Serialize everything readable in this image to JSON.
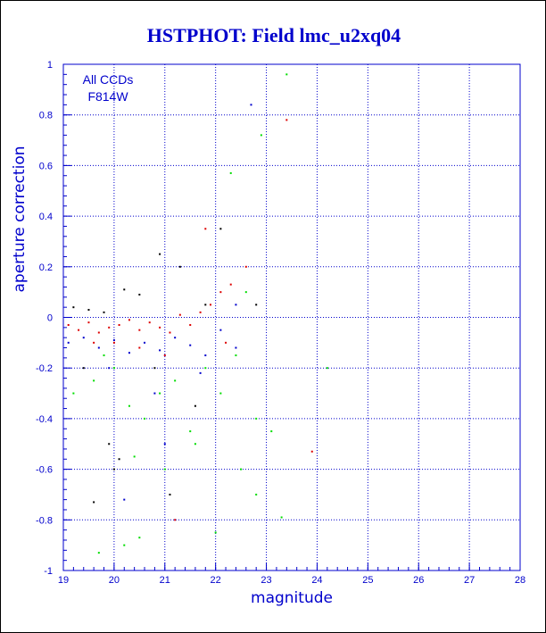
{
  "chart_data": {
    "type": "scatter",
    "title": "HSTPHOT: Field lmc_u2xq04",
    "xlabel": "magnitude",
    "ylabel": "aperture correction",
    "xlim": [
      19,
      28
    ],
    "ylim": [
      -1,
      1
    ],
    "xticks": [
      "19",
      "20",
      "21",
      "22",
      "23",
      "24",
      "25",
      "26",
      "27",
      "28"
    ],
    "yticks": [
      "-1",
      "-0.8",
      "-0.6",
      "-0.4",
      "-0.2",
      "0",
      "0.2",
      "0.4",
      "0.6",
      "0.8",
      "1"
    ],
    "annotations": [
      "All CCDs",
      "F814W"
    ],
    "grid": true,
    "grid_style": "dotted",
    "colors": {
      "axis": "#0000cc",
      "grid": "#0000cc",
      "red": "#dd0000",
      "green": "#00dd00",
      "blue": "#0000cc",
      "black": "#000000"
    },
    "series": [
      {
        "color": "#dd0000",
        "points": [
          [
            19.1,
            -0.03
          ],
          [
            19.3,
            -0.05
          ],
          [
            19.5,
            -0.02
          ],
          [
            19.7,
            -0.06
          ],
          [
            19.9,
            -0.04
          ],
          [
            20.1,
            -0.03
          ],
          [
            20.3,
            -0.01
          ],
          [
            20.5,
            -0.05
          ],
          [
            20.7,
            -0.02
          ],
          [
            20.9,
            -0.04
          ],
          [
            21.1,
            -0.06
          ],
          [
            21.3,
            0.01
          ],
          [
            21.5,
            -0.03
          ],
          [
            21.7,
            0.02
          ],
          [
            21.9,
            0.05
          ],
          [
            22.1,
            0.1
          ],
          [
            22.3,
            0.13
          ],
          [
            22.6,
            0.2
          ],
          [
            23.4,
            0.78
          ],
          [
            21.8,
            0.35
          ],
          [
            20.5,
            -0.12
          ],
          [
            20.0,
            -0.1
          ],
          [
            21.0,
            -0.15
          ],
          [
            19.6,
            -0.1
          ],
          [
            22.2,
            -0.1
          ],
          [
            23.9,
            -0.53
          ],
          [
            21.2,
            -0.8
          ]
        ]
      },
      {
        "color": "#00dd00",
        "points": [
          [
            19.2,
            -0.3
          ],
          [
            19.6,
            -0.25
          ],
          [
            20.0,
            -0.2
          ],
          [
            20.3,
            -0.35
          ],
          [
            20.6,
            -0.4
          ],
          [
            20.9,
            -0.3
          ],
          [
            21.2,
            -0.25
          ],
          [
            21.5,
            -0.45
          ],
          [
            21.8,
            -0.2
          ],
          [
            22.1,
            -0.3
          ],
          [
            22.4,
            -0.15
          ],
          [
            22.8,
            -0.4
          ],
          [
            19.8,
            -0.15
          ],
          [
            20.4,
            -0.55
          ],
          [
            21.0,
            -0.6
          ],
          [
            21.6,
            -0.5
          ],
          [
            22.6,
            0.1
          ],
          [
            22.9,
            0.72
          ],
          [
            23.4,
            0.96
          ],
          [
            22.3,
            0.57
          ],
          [
            22.0,
            -0.85
          ],
          [
            22.5,
            -0.6
          ],
          [
            20.2,
            -0.9
          ],
          [
            20.5,
            -0.87
          ],
          [
            19.7,
            -0.93
          ],
          [
            22.8,
            -0.7
          ],
          [
            23.3,
            -0.79
          ],
          [
            23.1,
            -0.45
          ],
          [
            24.2,
            -0.2
          ]
        ]
      },
      {
        "color": "#0000cc",
        "points": [
          [
            19.1,
            -0.1
          ],
          [
            19.4,
            -0.08
          ],
          [
            19.7,
            -0.12
          ],
          [
            20.0,
            -0.09
          ],
          [
            20.3,
            -0.14
          ],
          [
            20.6,
            -0.1
          ],
          [
            20.9,
            -0.13
          ],
          [
            21.2,
            -0.08
          ],
          [
            21.5,
            -0.11
          ],
          [
            21.8,
            -0.15
          ],
          [
            22.1,
            -0.05
          ],
          [
            22.4,
            -0.12
          ],
          [
            19.9,
            -0.2
          ],
          [
            20.8,
            -0.3
          ],
          [
            21.7,
            -0.22
          ],
          [
            22.7,
            0.84
          ],
          [
            22.4,
            0.05
          ],
          [
            21.0,
            -0.5
          ],
          [
            20.2,
            -0.72
          ]
        ]
      },
      {
        "color": "#000000",
        "points": [
          [
            19.2,
            0.04
          ],
          [
            19.5,
            0.03
          ],
          [
            19.8,
            0.02
          ],
          [
            20.2,
            0.11
          ],
          [
            20.5,
            0.09
          ],
          [
            20.9,
            0.25
          ],
          [
            21.3,
            0.2
          ],
          [
            21.6,
            -0.35
          ],
          [
            19.4,
            -0.2
          ],
          [
            19.9,
            -0.5
          ],
          [
            20.1,
            -0.56
          ],
          [
            20.8,
            -0.2
          ],
          [
            21.1,
            -0.7
          ],
          [
            22.1,
            0.35
          ],
          [
            21.8,
            0.05
          ],
          [
            19.6,
            -0.73
          ],
          [
            22.8,
            0.05
          ],
          [
            20.0,
            -0.6
          ]
        ]
      }
    ]
  }
}
